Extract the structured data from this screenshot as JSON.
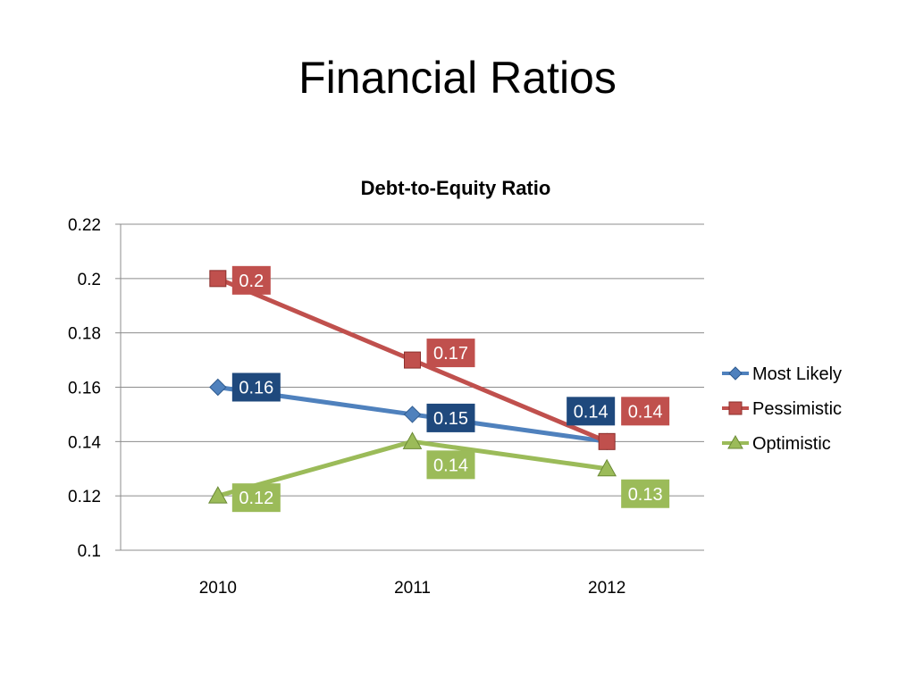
{
  "slide": {
    "title": "Financial Ratios"
  },
  "chart_data": {
    "type": "line",
    "title": "Debt-to-Equity Ratio",
    "xlabel": "",
    "ylabel": "",
    "categories": [
      "2010",
      "2011",
      "2012"
    ],
    "ylim": [
      0.1,
      0.22
    ],
    "yticks": [
      "0.22",
      "0.2",
      "0.18",
      "0.16",
      "0.14",
      "0.12",
      "0.1"
    ],
    "ytick_values": [
      0.22,
      0.2,
      0.18,
      0.16,
      0.14,
      0.12,
      0.1
    ],
    "grid": true,
    "legend_position": "right",
    "series": [
      {
        "name": "Most Likely",
        "values": [
          0.16,
          0.15,
          0.14
        ],
        "labels": [
          "0.16",
          "0.15",
          "0.14"
        ],
        "color": "#4F81BD",
        "label_bg": "#1F497D",
        "marker": "diamond"
      },
      {
        "name": "Pessimistic",
        "values": [
          0.2,
          0.17,
          0.14
        ],
        "labels": [
          "0.2",
          "0.17",
          "0.14"
        ],
        "color": "#C0504D",
        "label_bg": "#C0504D",
        "marker": "square"
      },
      {
        "name": "Optimistic",
        "values": [
          0.12,
          0.14,
          0.13
        ],
        "labels": [
          "0.12",
          "0.14",
          "0.13"
        ],
        "color": "#9BBB59",
        "label_bg": "#9BBB59",
        "marker": "triangle"
      }
    ]
  }
}
